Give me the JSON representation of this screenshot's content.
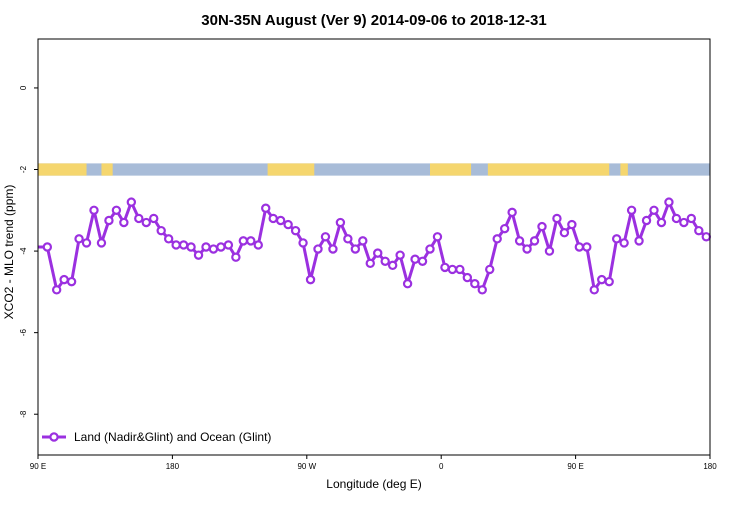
{
  "colors": {
    "series": "#9b30e0",
    "land_band": "#f5d66e",
    "ocean_band": "#a8bcd8",
    "axis": "#000000",
    "background": "#ffffff"
  },
  "chart_data": {
    "type": "line",
    "title": "30N-35N August (Ver 9)   2014-09-06 to 2018-12-31",
    "xlabel": "Longitude (deg E)",
    "ylabel": "XCO2 - MLO trend (ppm)",
    "xlim": [
      90,
      450
    ],
    "ylim": [
      -9,
      1.2
    ],
    "x_ticks": [
      {
        "value": 90,
        "label": "90 E"
      },
      {
        "value": 162,
        "label": "180"
      },
      {
        "value": 234,
        "label": "90 W"
      },
      {
        "value": 306,
        "label": "0"
      },
      {
        "value": 378,
        "label": "90 E"
      },
      {
        "value": 450,
        "label": "180"
      }
    ],
    "y_ticks": [
      {
        "value": 0,
        "label": "0"
      },
      {
        "value": -2,
        "label": "-2"
      },
      {
        "value": -4,
        "label": "-4"
      },
      {
        "value": -6,
        "label": "-6"
      },
      {
        "value": -8,
        "label": "-8"
      }
    ],
    "grid": false,
    "legend": {
      "position": "bottom-left"
    },
    "surface_band": {
      "y_range": [
        -1.85,
        -2.15
      ],
      "land_segments": [
        [
          90,
          116
        ],
        [
          124,
          130
        ],
        [
          213,
          238
        ],
        [
          300,
          322
        ],
        [
          331,
          396
        ],
        [
          402,
          406
        ]
      ]
    },
    "series": [
      {
        "name": "Land (Nadir&Glint) and Ocean (Glint)",
        "x": [
          90,
          95,
          100,
          104,
          108,
          112,
          116,
          120,
          124,
          128,
          132,
          136,
          140,
          144,
          148,
          152,
          156,
          160,
          164,
          168,
          172,
          176,
          180,
          184,
          188,
          192,
          196,
          200,
          204,
          208,
          212,
          216,
          220,
          224,
          228,
          232,
          236,
          240,
          244,
          248,
          252,
          256,
          260,
          264,
          268,
          272,
          276,
          280,
          284,
          288,
          292,
          296,
          300,
          304,
          308,
          312,
          316,
          320,
          324,
          328,
          332,
          336,
          340,
          344,
          348,
          352,
          356,
          360,
          364,
          368,
          372,
          376,
          380,
          384,
          388,
          392,
          396,
          400,
          404,
          408,
          412,
          416,
          420,
          424,
          428,
          432,
          436,
          440,
          444,
          448,
          450
        ],
        "y": [
          -3.9,
          -3.9,
          -4.95,
          -4.7,
          -4.75,
          -3.7,
          -3.8,
          -3.0,
          -3.8,
          -3.25,
          -3.0,
          -3.3,
          -2.8,
          -3.2,
          -3.3,
          -3.2,
          -3.5,
          -3.7,
          -3.85,
          -3.85,
          -3.9,
          -4.1,
          -3.9,
          -3.95,
          -3.9,
          -3.85,
          -4.15,
          -3.75,
          -3.75,
          -3.85,
          -2.95,
          -3.2,
          -3.25,
          -3.35,
          -3.5,
          -3.8,
          -4.7,
          -3.95,
          -3.65,
          -3.95,
          -3.3,
          -3.7,
          -3.95,
          -3.75,
          -4.3,
          -4.05,
          -4.25,
          -4.35,
          -4.1,
          -4.8,
          -4.2,
          -4.25,
          -3.95,
          -3.65,
          -4.4,
          -4.45,
          -4.45,
          -4.65,
          -4.8,
          -4.95,
          -4.45,
          -3.7,
          -3.45,
          -3.05,
          -3.75,
          -3.95,
          -3.75,
          -3.4,
          -4.0,
          -3.2,
          -3.55,
          -3.35,
          -3.9,
          -3.9,
          -4.95,
          -4.7,
          -4.75,
          -3.7,
          -3.8,
          -3.0,
          -3.75,
          -3.25,
          -3.0,
          -3.3,
          -2.8,
          -3.2,
          -3.3,
          -3.2,
          -3.5,
          -3.65,
          -3.7
        ]
      }
    ]
  }
}
